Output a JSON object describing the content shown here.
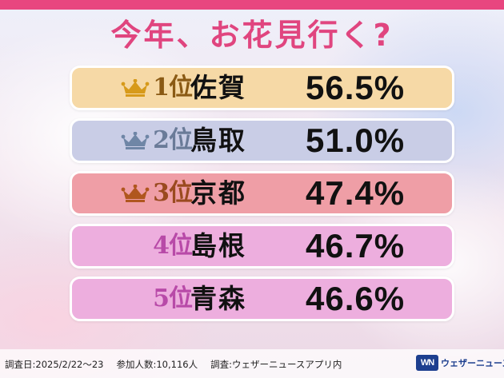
{
  "title": "今年、お花見行く?",
  "chart_data": {
    "type": "table",
    "title": "今年、お花見行く?",
    "rows": [
      {
        "rank": "1位",
        "prefecture": "佐賀",
        "percent_label": "56.5%",
        "value": 56.5
      },
      {
        "rank": "2位",
        "prefecture": "鳥取",
        "percent_label": "51.0%",
        "value": 51.0
      },
      {
        "rank": "3位",
        "prefecture": "京都",
        "percent_label": "47.4%",
        "value": 47.4
      },
      {
        "rank": "4位",
        "prefecture": "島根",
        "percent_label": "46.7%",
        "value": 46.7
      },
      {
        "rank": "5位",
        "prefecture": "青森",
        "percent_label": "46.6%",
        "value": 46.6
      }
    ]
  },
  "colors": {
    "accent": "#e0457f",
    "row_fills": [
      "#f6d9a6",
      "#c9cde6",
      "#ef9ea6",
      "#edaede",
      "#edaede"
    ],
    "rank_colors": [
      "#8a5a14",
      "#6a7b98",
      "#9a4a1f",
      "#b84aa8",
      "#b84aa8"
    ],
    "crown_colors": [
      "#d79a1a",
      "#6f86a6",
      "#b0561e",
      null,
      null
    ]
  },
  "footer": {
    "date": "調査日:2025/2/22〜23",
    "participants": "参加人数:10,116人",
    "survey": "調査:ウェザーニュースアプリ内"
  },
  "logo": {
    "mark": "WN",
    "name": "ウェザーニュース"
  }
}
